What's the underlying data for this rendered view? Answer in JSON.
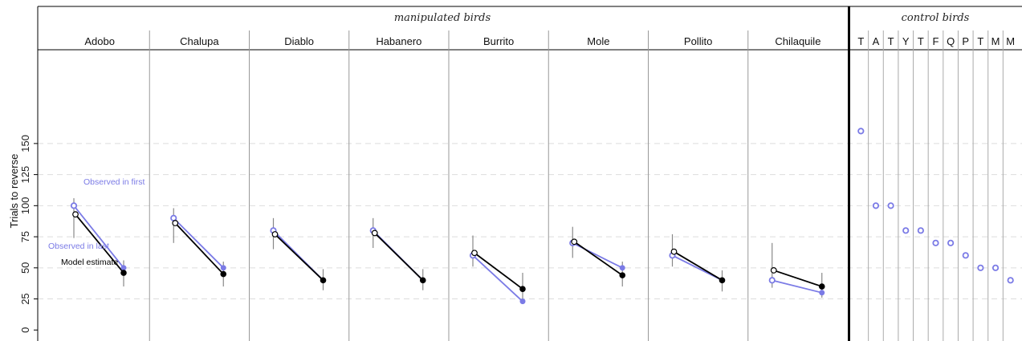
{
  "chart_data": {
    "type": "scatter",
    "title": "",
    "ylabel": "Trials to reverse",
    "ylim": [
      -5,
      180
    ],
    "yticks": [
      0,
      25,
      50,
      75,
      100,
      125,
      150
    ],
    "grid": "horizontal dashed",
    "groups": {
      "manipulated": "manipulated birds",
      "control": "control birds"
    },
    "colors": {
      "observed": "#7b7be6",
      "model": "#000000",
      "error_bar": "#888888",
      "grid": "#dddddd"
    },
    "annotations": {
      "observed_first": "Observed in first",
      "observed_last": "Observed in last",
      "model_estimate": "Model estimate"
    },
    "manipulated_birds": [
      {
        "name": "Adobo",
        "observed_first": 100,
        "observed_last": 50,
        "model_first": 93,
        "model_last": 46,
        "ci_first": [
          74,
          106
        ],
        "ci_last": [
          35,
          56
        ]
      },
      {
        "name": "Chalupa",
        "observed_first": 90,
        "observed_last": 50,
        "model_first": 86,
        "model_last": 45,
        "ci_first": [
          70,
          98
        ],
        "ci_last": [
          35,
          55
        ]
      },
      {
        "name": "Diablo",
        "observed_first": 80,
        "observed_last": 40,
        "model_first": 77,
        "model_last": 40,
        "ci_first": [
          65,
          90
        ],
        "ci_last": [
          32,
          49
        ]
      },
      {
        "name": "Habanero",
        "observed_first": 80,
        "observed_last": 40,
        "model_first": 78,
        "model_last": 40,
        "ci_first": [
          66,
          90
        ],
        "ci_last": [
          32,
          49
        ]
      },
      {
        "name": "Burrito",
        "observed_first": 60,
        "observed_last": 23,
        "model_first": 62,
        "model_last": 33,
        "ci_first": [
          51,
          76
        ],
        "ci_last": [
          23,
          46
        ]
      },
      {
        "name": "Mole",
        "observed_first": 70,
        "observed_last": 50,
        "model_first": 71,
        "model_last": 44,
        "ci_first": [
          58,
          83
        ],
        "ci_last": [
          35,
          55
        ]
      },
      {
        "name": "Pollito",
        "observed_first": 60,
        "observed_last": 40,
        "model_first": 63,
        "model_last": 40,
        "ci_first": [
          51,
          77
        ],
        "ci_last": [
          31,
          48
        ]
      },
      {
        "name": "Chilaquile",
        "observed_first": 40,
        "observed_last": 30,
        "model_first": 48,
        "model_last": 35,
        "ci_first": [
          34,
          70
        ],
        "ci_last": [
          26,
          46
        ]
      }
    ],
    "control_birds": [
      {
        "name": "T",
        "observed": 160
      },
      {
        "name": "A",
        "observed": 100
      },
      {
        "name": "T",
        "observed": 100
      },
      {
        "name": "Y",
        "observed": 80
      },
      {
        "name": "T",
        "observed": 80
      },
      {
        "name": "F",
        "observed": 70
      },
      {
        "name": "Q",
        "observed": 70
      },
      {
        "name": "P",
        "observed": 60
      },
      {
        "name": "T",
        "observed": 50
      },
      {
        "name": "M",
        "observed": 50
      },
      {
        "name": "M",
        "observed": 40
      }
    ]
  }
}
